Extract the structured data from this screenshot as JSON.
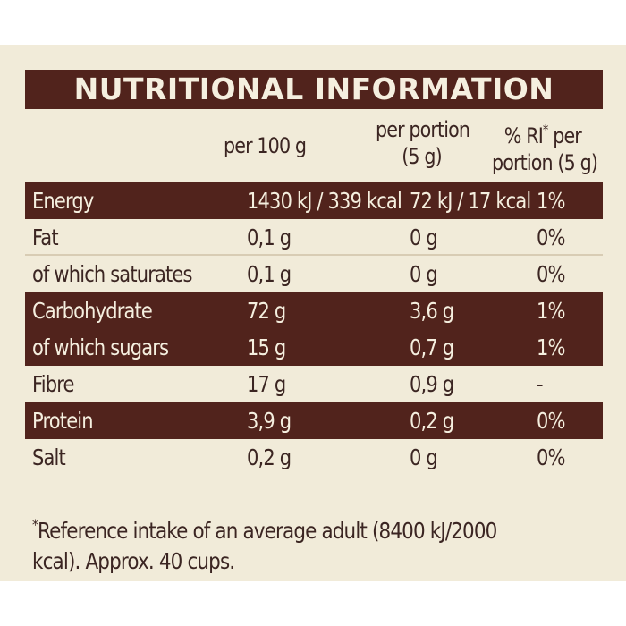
{
  "title": "NUTRITIONAL INFORMATION",
  "columns": {
    "per100": "per 100 g",
    "portion_line1": "per portion",
    "portion_line2": "(5 g)",
    "ri_line1_a": "% RI",
    "ri_star": "*",
    "ri_line1_b": " per",
    "ri_line2": "portion (5 g)"
  },
  "rows": [
    {
      "name": "Energy",
      "per100": "1430 kJ / 339 kcal",
      "portion": "72 kJ / 17 kcal",
      "ri": "1%",
      "style": "dark"
    },
    {
      "name": "Fat",
      "per100": "0,1 g",
      "portion": "0 g",
      "ri": "0%",
      "style": "light"
    },
    {
      "name": "of which saturates",
      "per100": "0,1 g",
      "portion": "0 g",
      "ri": "0%",
      "style": "light"
    },
    {
      "name": "Carbohydrate",
      "per100": "72 g",
      "portion": "3,6 g",
      "ri": "1%",
      "style": "dark"
    },
    {
      "name": "of which sugars",
      "per100": "15 g",
      "portion": "0,7 g",
      "ri": "1%",
      "style": "dark"
    },
    {
      "name": "Fibre",
      "per100": "17 g",
      "portion": "0,9 g",
      "ri": "-",
      "style": "light"
    },
    {
      "name": "Protein",
      "per100": "3,9 g",
      "portion": "0,2 g",
      "ri": "0%",
      "style": "dark"
    },
    {
      "name": "Salt",
      "per100": "0,2 g",
      "portion": "0 g",
      "ri": "0%",
      "style": "light"
    }
  ],
  "footnote": {
    "star": "*",
    "line1": "Reference intake of an average adult (8400 kJ/2000",
    "line2": "kcal). Approx. 40 cups."
  },
  "colors": {
    "panel": "#f1ebd9",
    "dark_band": "#51231c",
    "text": "#3b2522"
  }
}
